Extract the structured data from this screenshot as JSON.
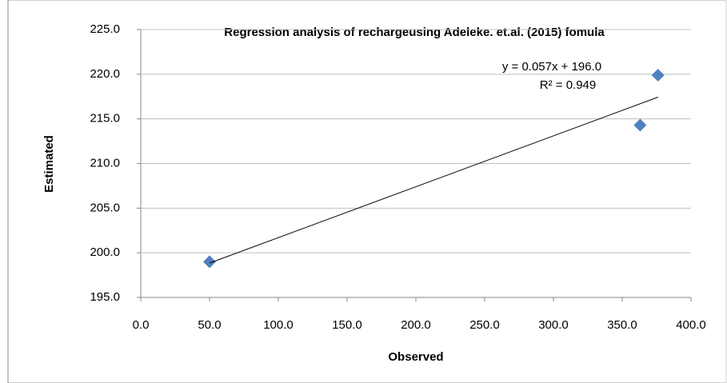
{
  "chart_data": {
    "type": "scatter",
    "title": "Regression analysis of rechargeusing Adeleke. et.al. (2015) fomula",
    "x_label": "Observed",
    "y_label": "Estimated",
    "series": [
      {
        "name": "Estimated",
        "color": "#4f81bd",
        "x": [
          50,
          363,
          376
        ],
        "values": [
          199.0,
          214.3,
          219.9
        ]
      }
    ],
    "trendline": {
      "equation": "y = 0.057x + 196.0",
      "r_squared": "R² = 0.949",
      "slope": 0.057,
      "intercept": 196.0,
      "color": "#000000"
    },
    "xlim": [
      0,
      400
    ],
    "xticks": [
      {
        "value": 0,
        "label": "0.0"
      },
      {
        "value": 50,
        "label": "50.0"
      },
      {
        "value": 100,
        "label": "100.0"
      },
      {
        "value": 150,
        "label": "150.0"
      },
      {
        "value": 200,
        "label": "200.0"
      },
      {
        "value": 250,
        "label": "250.0"
      },
      {
        "value": 300,
        "label": "300.0"
      },
      {
        "value": 350,
        "label": "350.0"
      },
      {
        "value": 400,
        "label": "400.0"
      }
    ],
    "ylim": [
      195,
      225
    ],
    "yticks": [
      {
        "value": 195,
        "label": "195.0"
      },
      {
        "value": 200,
        "label": "200.0"
      },
      {
        "value": 205,
        "label": "205.0"
      },
      {
        "value": 210,
        "label": "210.0"
      },
      {
        "value": 215,
        "label": "215.0"
      },
      {
        "value": 220,
        "label": "220.0"
      },
      {
        "value": 225,
        "label": "225.0"
      }
    ],
    "grid": true
  }
}
